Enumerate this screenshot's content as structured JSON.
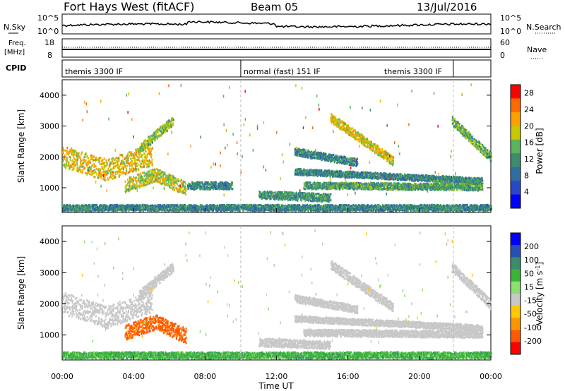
{
  "header": {
    "title": "Fort Hays West (fitACF)",
    "beam": "Beam 05",
    "date": "13/Jul/2016"
  },
  "noise_panel": {
    "left_label": "N.Sky",
    "right_label": "N.Search",
    "left_ticks": [
      "10^5",
      "10^0"
    ],
    "right_ticks": [
      "10^5",
      "10^0"
    ]
  },
  "freq_panel": {
    "left_label_line1": "Freq.",
    "left_label_line2": "[MHz]",
    "right_label": "Nave",
    "left_ticks": [
      "18",
      "8"
    ],
    "right_ticks": [
      "60",
      "0"
    ]
  },
  "cpid_panel": {
    "label": "CPID",
    "segments": [
      {
        "text": "themis 3300 IF",
        "start_hour": 0.0,
        "end_hour": 10.0
      },
      {
        "text": "normal (fast) 151 IF",
        "start_hour": 10.0,
        "end_hour": 21.9
      },
      {
        "text": "themis 3300 IF",
        "start_hour": 21.9,
        "end_hour": 24.0
      }
    ]
  },
  "colors": {
    "power_scale": [
      "#0000ff",
      "#2848c8",
      "#2f6fa0",
      "#3c8c6e",
      "#5ab45a",
      "#c8c800",
      "#ffa000",
      "#ff6a00",
      "#ff0000"
    ],
    "velocity_scale": [
      "#ff0000",
      "#ff5a00",
      "#ff9600",
      "#ffc800",
      "#c8c8c8",
      "#8ce06e",
      "#3cb43c",
      "#3c8c6e",
      "#2850b4",
      "#0000ff"
    ]
  },
  "chart_data": [
    {
      "type": "heatmap",
      "title": "",
      "xlabel": "Time UT",
      "ylabel": "Slant Range [km]",
      "xlim": [
        0,
        24
      ],
      "ylim": [
        200,
        4500
      ],
      "x_ticks": [
        "00:00",
        "04:00",
        "08:00",
        "12:00",
        "16:00",
        "20:00",
        "00:00"
      ],
      "y_ticks": [
        1000,
        2000,
        3000,
        4000
      ],
      "colorbar": {
        "label": "Power [dB]",
        "ticks": [
          4,
          8,
          12,
          16,
          20,
          24,
          28
        ],
        "range": [
          0,
          30
        ]
      },
      "regions": [
        {
          "t0": 0.0,
          "t1": 5.0,
          "r_center": [
            2050,
            1600,
            2100
          ],
          "r_width": 350,
          "value": 20
        },
        {
          "t0": 4.3,
          "t1": 6.2,
          "r_center": [
            2300,
            3200
          ],
          "r_width": 150,
          "value": 16
        },
        {
          "t0": 3.5,
          "t1": 6.9,
          "r_center": [
            1100,
            1450,
            1000
          ],
          "r_width": 220,
          "value": 18
        },
        {
          "t0": 7.0,
          "t1": 9.5,
          "r_center": [
            1100,
            1100
          ],
          "r_width": 120,
          "value": 10
        },
        {
          "t0": 11.0,
          "t1": 15.0,
          "r_center": [
            800,
            700
          ],
          "r_width": 130,
          "value": 12
        },
        {
          "t0": 13.0,
          "t1": 23.5,
          "r_center": [
            1550,
            1250
          ],
          "r_width": 100,
          "value": 10
        },
        {
          "t0": 13.5,
          "t1": 23.5,
          "r_center": [
            1100,
            1050
          ],
          "r_width": 110,
          "value": 13
        },
        {
          "t0": 13.0,
          "t1": 16.5,
          "r_center": [
            2200,
            1850
          ],
          "r_width": 120,
          "value": 10
        },
        {
          "t0": 15.0,
          "t1": 18.5,
          "r_center": [
            3300,
            1900
          ],
          "r_width": 150,
          "value": 20
        },
        {
          "t0": 21.8,
          "t1": 24.0,
          "r_center": [
            3200,
            2000
          ],
          "r_width": 150,
          "value": 14
        },
        {
          "t0": 0.0,
          "t1": 24.0,
          "r_center": [
            380,
            380
          ],
          "r_width": 100,
          "value": 10
        }
      ]
    },
    {
      "type": "heatmap",
      "title": "",
      "xlabel": "Time UT",
      "ylabel": "Slant Range [km]",
      "xlim": [
        0,
        24
      ],
      "ylim": [
        200,
        4500
      ],
      "x_ticks": [
        "00:00",
        "04:00",
        "08:00",
        "12:00",
        "16:00",
        "20:00",
        "00:00"
      ],
      "y_ticks": [
        1000,
        2000,
        3000,
        4000
      ],
      "colorbar": {
        "label": "Velocity [m s^-1]",
        "ticks": [
          200,
          100,
          50,
          15,
          -15,
          -50,
          -100,
          -200
        ]
      },
      "regions": [
        {
          "t0": 0.0,
          "t1": 5.0,
          "r_center": [
            2050,
            1600,
            2100
          ],
          "r_width": 350,
          "value": 0
        },
        {
          "t0": 4.3,
          "t1": 6.2,
          "r_center": [
            2300,
            3200
          ],
          "r_width": 150,
          "value": 0
        },
        {
          "t0": 3.5,
          "t1": 6.9,
          "r_center": [
            1100,
            1450,
            1000
          ],
          "r_width": 240,
          "value": -60
        },
        {
          "t0": 11.0,
          "t1": 15.0,
          "r_center": [
            800,
            700
          ],
          "r_width": 130,
          "value": 0
        },
        {
          "t0": 13.0,
          "t1": 23.5,
          "r_center": [
            1550,
            1250
          ],
          "r_width": 100,
          "value": 0
        },
        {
          "t0": 13.5,
          "t1": 23.5,
          "r_center": [
            1100,
            1050
          ],
          "r_width": 110,
          "value": 0
        },
        {
          "t0": 13.0,
          "t1": 16.5,
          "r_center": [
            2200,
            1850
          ],
          "r_width": 120,
          "value": 0
        },
        {
          "t0": 15.0,
          "t1": 18.5,
          "r_center": [
            3300,
            1900
          ],
          "r_width": 150,
          "value": 0
        },
        {
          "t0": 21.8,
          "t1": 24.0,
          "r_center": [
            3200,
            2000
          ],
          "r_width": 150,
          "value": 0
        },
        {
          "t0": 0.0,
          "t1": 24.0,
          "r_center": [
            380,
            380
          ],
          "r_width": 100,
          "value": 40
        }
      ]
    }
  ]
}
